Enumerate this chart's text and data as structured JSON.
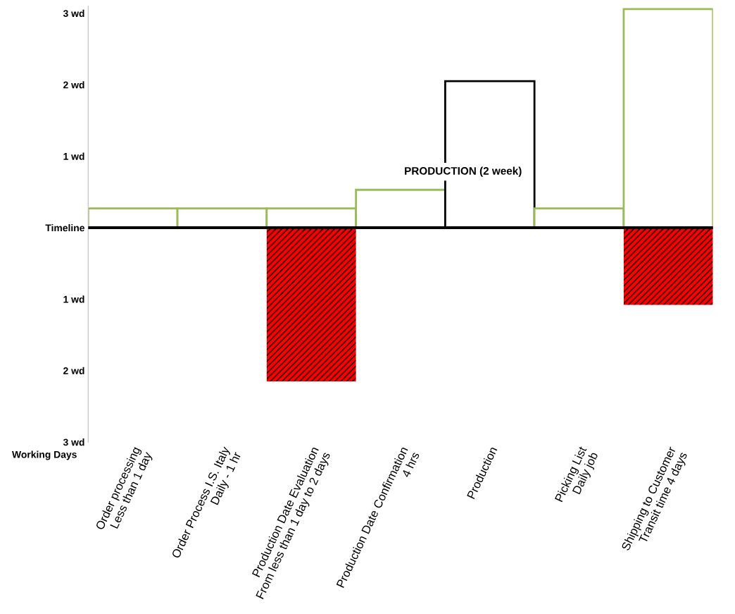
{
  "chart_data": {
    "type": "bar",
    "ylabel": "Working Days",
    "categories": [
      "Order processing\nLess than 1 day",
      "Order Process I.S. Italy\nDaily - 1 hr",
      "Production Date Evaluation\nFrom less than 1 day to 2 days",
      "Production Date Confirmation\n4 hrs",
      "Production",
      "Picking List\nDaily job",
      "Shipping to Customer\nTransit time 4 days"
    ],
    "series": [
      {
        "color": "#9bbb59",
        "colors": [
          "#9bbb59",
          "#9bbb59",
          "#9bbb59",
          "#9bbb59",
          "#000000",
          "#9bbb59",
          "#9bbb59"
        ],
        "values": [
          0.27,
          0.27,
          0.27,
          0.53,
          2.05,
          0.27,
          3.06
        ]
      },
      {
        "color": "#ff0000",
        "values": [
          null,
          null,
          -2.15,
          null,
          null,
          null,
          -1.08
        ]
      }
    ],
    "ylim": [
      -3,
      3.1
    ],
    "yticks": [
      {
        "value": 3,
        "label": "3 wd"
      },
      {
        "value": 2,
        "label": "2 wd"
      },
      {
        "value": 1,
        "label": "1 wd"
      },
      {
        "value": 0,
        "label": "Timeline"
      },
      {
        "value": -1,
        "label": "1 wd"
      },
      {
        "value": -2,
        "label": "2 wd"
      },
      {
        "value": -3,
        "label": "3 wd"
      }
    ],
    "ref_lines": [
      {
        "axis": "y",
        "value": 0,
        "color": "#000000"
      }
    ],
    "annotations": [
      "PRODUCTION (2 week)"
    ],
    "grid": false,
    "legend": false
  }
}
